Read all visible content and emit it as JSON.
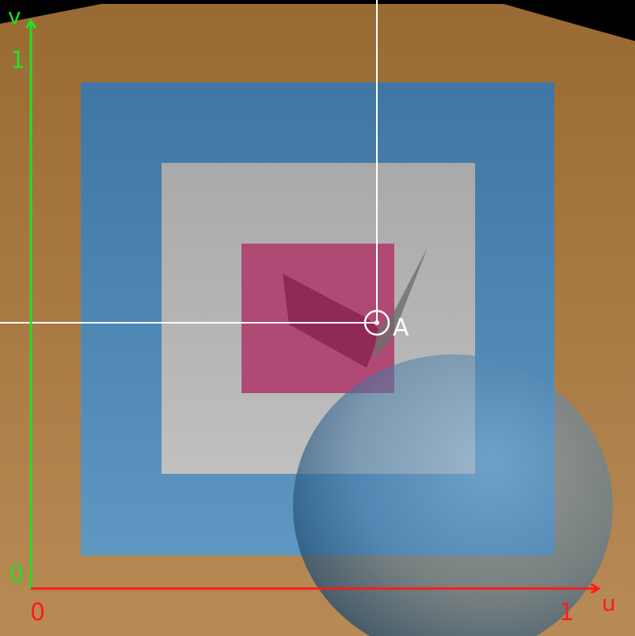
{
  "axes": {
    "u_axis_label": "u",
    "v_axis_label": "v",
    "u_tick_start": "0",
    "u_tick_end": "1",
    "v_tick_start": "0",
    "v_tick_end": "1",
    "u_axis_color": "#ff1a1a",
    "v_axis_color": "#22e022"
  },
  "point": {
    "label": "A",
    "u": 0.64,
    "v": 0.5
  },
  "colors": {
    "background": "#b08049",
    "outer_square": "#4f86b3",
    "middle_square": "#b3b3b3",
    "inner_square": "#b04a74",
    "sphere": "#5a8fb8",
    "crosshair": "#ffffff",
    "marker": "#ffffff"
  }
}
